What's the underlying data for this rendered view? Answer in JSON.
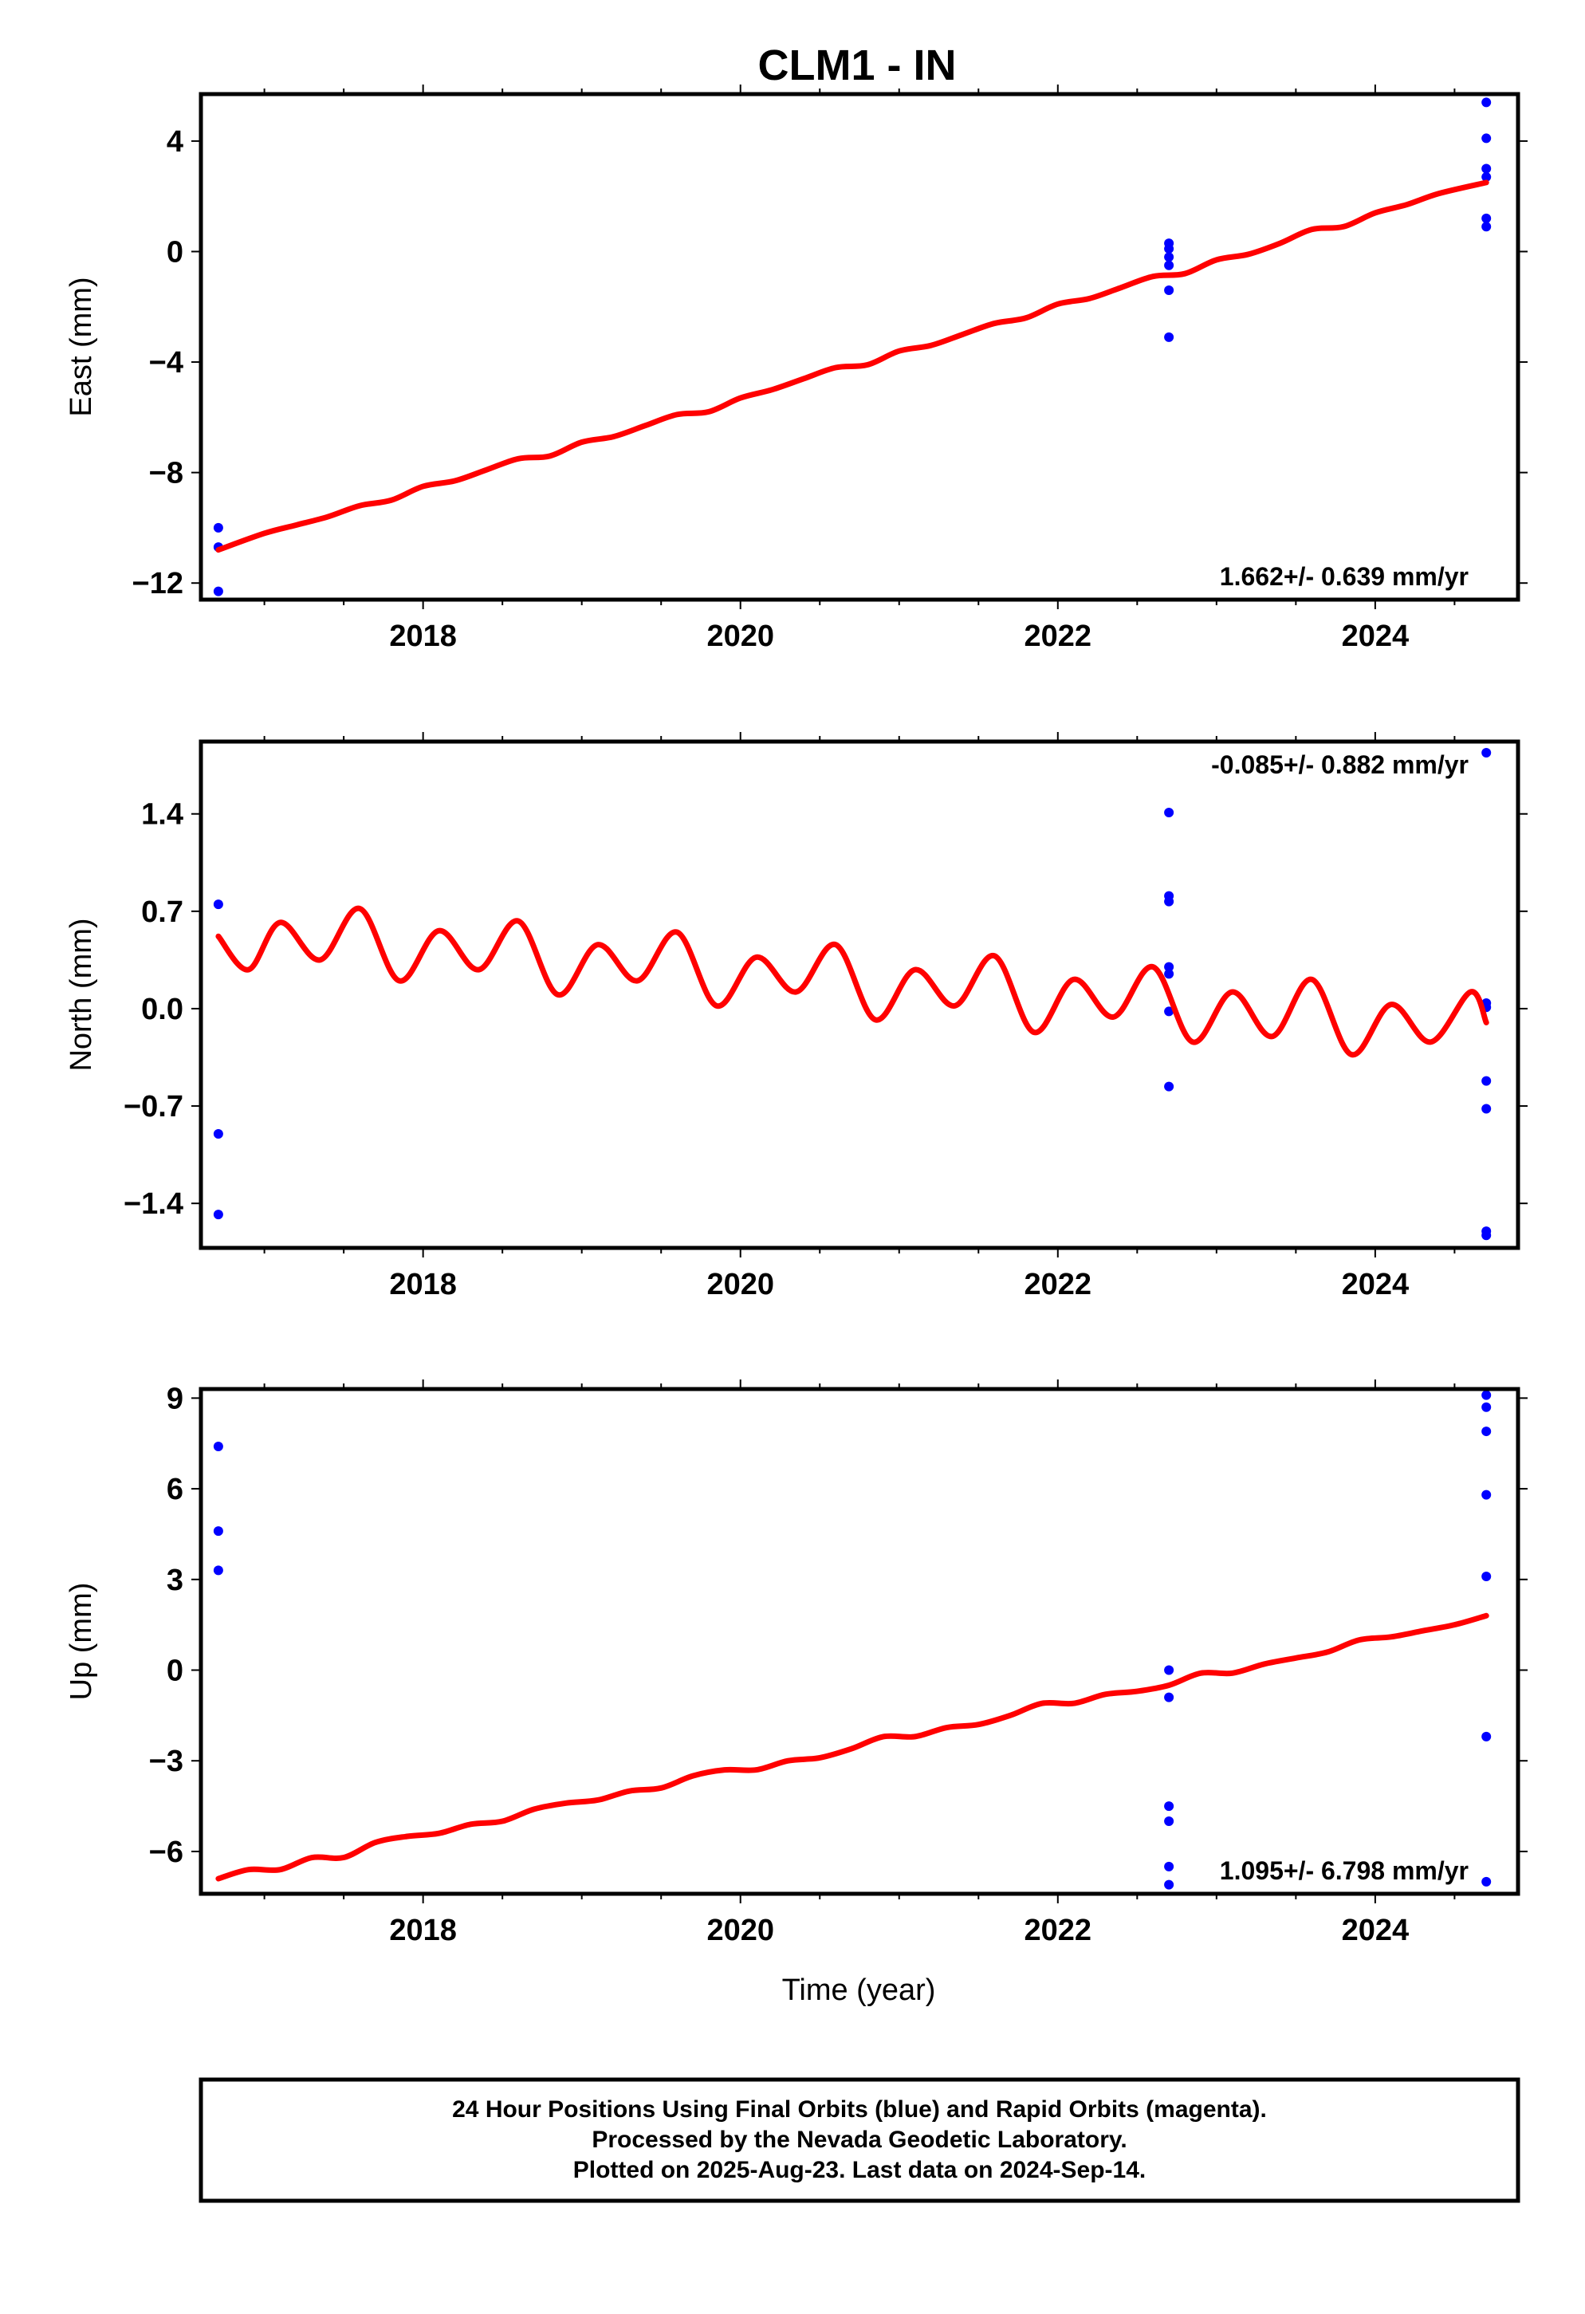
{
  "title": "CLM1 - IN",
  "x_axis_label": "Time (year)",
  "footer": {
    "lines": [
      "24 Hour Positions Using Final Orbits (blue) and Rapid Orbits (magenta).",
      "Processed by the Nevada Geodetic Laboratory.",
      "Plotted on 2025-Aug-23. Last data on 2024-Sep-14."
    ]
  },
  "colors": {
    "points": "#0000ff",
    "model": "#ff0000",
    "frame": "#000000"
  },
  "chart_data": [
    {
      "type": "scatter",
      "id": "east",
      "ylabel": "East (mm)",
      "xlim": [
        2016.6,
        2024.9
      ],
      "ylim": [
        -12.6,
        5.7
      ],
      "x_ticks": [
        2018,
        2020,
        2022,
        2024
      ],
      "y_ticks": [
        -12,
        -8,
        -4,
        0,
        4
      ],
      "rate": "1.662+/- 0.639 mm/yr",
      "rate_position": "bottom-right",
      "points": [
        {
          "x": 2016.71,
          "y": -10.0
        },
        {
          "x": 2016.71,
          "y": -10.7
        },
        {
          "x": 2016.71,
          "y": -12.3
        },
        {
          "x": 2022.7,
          "y": 0.3
        },
        {
          "x": 2022.7,
          "y": 0.1
        },
        {
          "x": 2022.7,
          "y": -0.2
        },
        {
          "x": 2022.7,
          "y": -0.5
        },
        {
          "x": 2022.7,
          "y": -1.4
        },
        {
          "x": 2022.7,
          "y": -3.1
        },
        {
          "x": 2024.7,
          "y": 5.4
        },
        {
          "x": 2024.7,
          "y": 4.1
        },
        {
          "x": 2024.7,
          "y": 3.0
        },
        {
          "x": 2024.7,
          "y": 2.7
        },
        {
          "x": 2024.7,
          "y": 1.2
        },
        {
          "x": 2024.7,
          "y": 0.9
        }
      ],
      "model": {
        "x": [
          2016.71,
          2017.0,
          2017.2,
          2017.4,
          2017.6,
          2017.8,
          2018.0,
          2018.2,
          2018.4,
          2018.6,
          2018.8,
          2019.0,
          2019.2,
          2019.4,
          2019.6,
          2019.8,
          2020.0,
          2020.2,
          2020.4,
          2020.6,
          2020.8,
          2021.0,
          2021.2,
          2021.4,
          2021.6,
          2021.8,
          2022.0,
          2022.2,
          2022.4,
          2022.6,
          2022.8,
          2023.0,
          2023.2,
          2023.4,
          2023.6,
          2023.8,
          2024.0,
          2024.2,
          2024.4,
          2024.7
        ],
        "y": [
          -10.8,
          -10.2,
          -9.9,
          -9.6,
          -9.2,
          -9.0,
          -8.5,
          -8.3,
          -7.9,
          -7.5,
          -7.4,
          -6.9,
          -6.7,
          -6.3,
          -5.9,
          -5.8,
          -5.3,
          -5.0,
          -4.6,
          -4.2,
          -4.1,
          -3.6,
          -3.4,
          -3.0,
          -2.6,
          -2.4,
          -1.9,
          -1.7,
          -1.3,
          -0.9,
          -0.8,
          -0.3,
          -0.1,
          0.3,
          0.8,
          0.9,
          1.4,
          1.7,
          2.1,
          2.5
        ]
      }
    },
    {
      "type": "scatter",
      "id": "north",
      "ylabel": "North (mm)",
      "xlim": [
        2016.6,
        2024.9
      ],
      "ylim": [
        -1.72,
        1.92
      ],
      "x_ticks": [
        2018,
        2020,
        2022,
        2024
      ],
      "y_ticks": [
        -1.4,
        -0.7,
        0.0,
        0.7,
        1.4
      ],
      "y_tick_labels": [
        "-1.4",
        "-0.7",
        "0.0",
        "0.7",
        "1.4"
      ],
      "rate": "-0.085+/- 0.882 mm/yr",
      "rate_position": "top-right",
      "points": [
        {
          "x": 2016.71,
          "y": 0.75
        },
        {
          "x": 2016.71,
          "y": -0.9
        },
        {
          "x": 2016.71,
          "y": -1.48
        },
        {
          "x": 2022.7,
          "y": 1.41
        },
        {
          "x": 2022.7,
          "y": 0.81
        },
        {
          "x": 2022.7,
          "y": 0.77
        },
        {
          "x": 2022.7,
          "y": 0.3
        },
        {
          "x": 2022.7,
          "y": 0.25
        },
        {
          "x": 2022.7,
          "y": -0.02
        },
        {
          "x": 2022.7,
          "y": -0.56
        },
        {
          "x": 2024.7,
          "y": 1.84
        },
        {
          "x": 2024.7,
          "y": 0.04
        },
        {
          "x": 2024.7,
          "y": 0.01
        },
        {
          "x": 2024.7,
          "y": -0.52
        },
        {
          "x": 2024.7,
          "y": -0.72
        },
        {
          "x": 2024.7,
          "y": -1.6
        },
        {
          "x": 2024.7,
          "y": -1.63
        }
      ],
      "model": {
        "x": [
          2016.71,
          2016.9,
          2017.1,
          2017.35,
          2017.6,
          2017.85,
          2018.1,
          2018.35,
          2018.6,
          2018.85,
          2019.1,
          2019.35,
          2019.6,
          2019.85,
          2020.1,
          2020.35,
          2020.6,
          2020.85,
          2021.1,
          2021.35,
          2021.6,
          2021.85,
          2022.1,
          2022.35,
          2022.6,
          2022.85,
          2023.1,
          2023.35,
          2023.6,
          2023.85,
          2024.1,
          2024.35,
          2024.6,
          2024.7
        ],
        "y": [
          0.52,
          0.28,
          0.62,
          0.35,
          0.72,
          0.2,
          0.56,
          0.28,
          0.63,
          0.1,
          0.46,
          0.2,
          0.55,
          0.02,
          0.37,
          0.12,
          0.46,
          -0.08,
          0.28,
          0.02,
          0.38,
          -0.17,
          0.21,
          -0.06,
          0.3,
          -0.24,
          0.12,
          -0.2,
          0.21,
          -0.33,
          0.03,
          -0.24,
          0.12,
          -0.1
        ]
      }
    },
    {
      "type": "scatter",
      "id": "up",
      "ylabel": "Up (mm)",
      "xlim": [
        2016.6,
        2024.9
      ],
      "ylim": [
        -7.4,
        9.3
      ],
      "x_ticks": [
        2018,
        2020,
        2022,
        2024
      ],
      "y_ticks": [
        -6,
        -3,
        0,
        3,
        6,
        9
      ],
      "rate": "1.095+/- 6.798 mm/yr",
      "rate_position": "bottom-right",
      "points": [
        {
          "x": 2016.71,
          "y": 7.4
        },
        {
          "x": 2016.71,
          "y": 4.6
        },
        {
          "x": 2016.71,
          "y": 3.3
        },
        {
          "x": 2022.7,
          "y": 0.0
        },
        {
          "x": 2022.7,
          "y": -0.9
        },
        {
          "x": 2022.7,
          "y": -4.5
        },
        {
          "x": 2022.7,
          "y": -5.0
        },
        {
          "x": 2022.7,
          "y": -6.5
        },
        {
          "x": 2022.7,
          "y": -7.1
        },
        {
          "x": 2024.7,
          "y": 9.1
        },
        {
          "x": 2024.7,
          "y": 8.7
        },
        {
          "x": 2024.7,
          "y": 7.9
        },
        {
          "x": 2024.7,
          "y": 5.8
        },
        {
          "x": 2024.7,
          "y": 3.1
        },
        {
          "x": 2024.7,
          "y": -2.2
        },
        {
          "x": 2024.7,
          "y": -7.0
        }
      ],
      "model": {
        "x": [
          2016.71,
          2016.9,
          2017.1,
          2017.3,
          2017.5,
          2017.7,
          2017.9,
          2018.1,
          2018.3,
          2018.5,
          2018.7,
          2018.9,
          2019.1,
          2019.3,
          2019.5,
          2019.7,
          2019.9,
          2020.1,
          2020.3,
          2020.5,
          2020.7,
          2020.9,
          2021.1,
          2021.3,
          2021.5,
          2021.7,
          2021.9,
          2022.1,
          2022.3,
          2022.5,
          2022.7,
          2022.9,
          2023.1,
          2023.3,
          2023.5,
          2023.7,
          2023.9,
          2024.1,
          2024.3,
          2024.5,
          2024.7
        ],
        "y": [
          -6.9,
          -6.6,
          -6.6,
          -6.2,
          -6.2,
          -5.7,
          -5.5,
          -5.4,
          -5.1,
          -5.0,
          -4.6,
          -4.4,
          -4.3,
          -4.0,
          -3.9,
          -3.5,
          -3.3,
          -3.3,
          -3.0,
          -2.9,
          -2.6,
          -2.2,
          -2.2,
          -1.9,
          -1.8,
          -1.5,
          -1.1,
          -1.1,
          -0.8,
          -0.7,
          -0.5,
          -0.1,
          -0.1,
          0.2,
          0.4,
          0.6,
          1.0,
          1.1,
          1.3,
          1.5,
          1.8
        ]
      }
    }
  ]
}
